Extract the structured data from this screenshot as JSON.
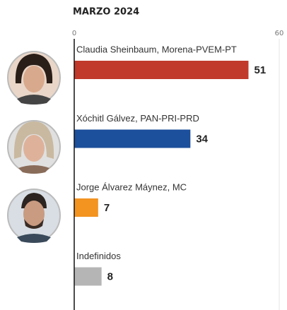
{
  "chart_data": {
    "type": "bar",
    "orientation": "horizontal",
    "title": "MARZO 2024",
    "categories": [
      "Claudia Sheinbaum, Morena-PVEM-PT",
      "Xóchitl Gálvez, PAN-PRI-PRD",
      "Jorge Álvarez Máynez, MC",
      "Indefinidos"
    ],
    "values": [
      51,
      34,
      7,
      8
    ],
    "colors": [
      "#c0392b",
      "#1c4f9c",
      "#f39320",
      "#b5b5b5"
    ],
    "xlim": [
      0,
      60
    ],
    "xticks": [
      0,
      60
    ],
    "grid": true
  }
}
